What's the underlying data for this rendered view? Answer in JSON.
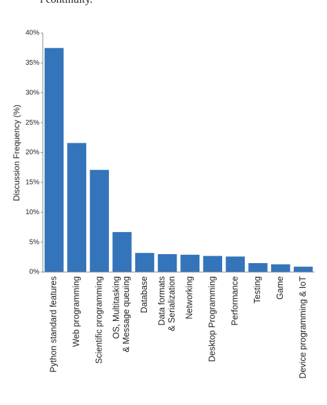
{
  "context_text": "l continuity.",
  "chart_data": {
    "type": "bar",
    "y_label": "Discussion Frequency (%)",
    "categories": [
      "Python standard features",
      "Web programming",
      "Scientific programming",
      "OS, Multitasking\n& Message queuing",
      "Database",
      "Data formats\n& Serialization",
      "Networking",
      "Desktop Programming",
      "Performance",
      "Testing",
      "Game",
      "Device programming & IoT"
    ],
    "values": [
      37.5,
      21.6,
      17.1,
      6.7,
      3.2,
      3.0,
      2.9,
      2.7,
      2.6,
      1.5,
      1.3,
      0.9
    ],
    "color": "#3474ba",
    "ylim": [
      0,
      40
    ],
    "yticks": [
      {
        "value": 0,
        "label": "0%"
      },
      {
        "value": 5,
        "label": "5%"
      },
      {
        "value": 10,
        "label": "10%"
      },
      {
        "value": 15,
        "label": "15%"
      },
      {
        "value": 20,
        "label": "20%"
      },
      {
        "value": 25,
        "label": "25%"
      },
      {
        "value": 30,
        "label": "30%"
      },
      {
        "value": 35,
        "label": "35%"
      },
      {
        "value": 40,
        "label": "40%"
      }
    ],
    "grid": false
  }
}
